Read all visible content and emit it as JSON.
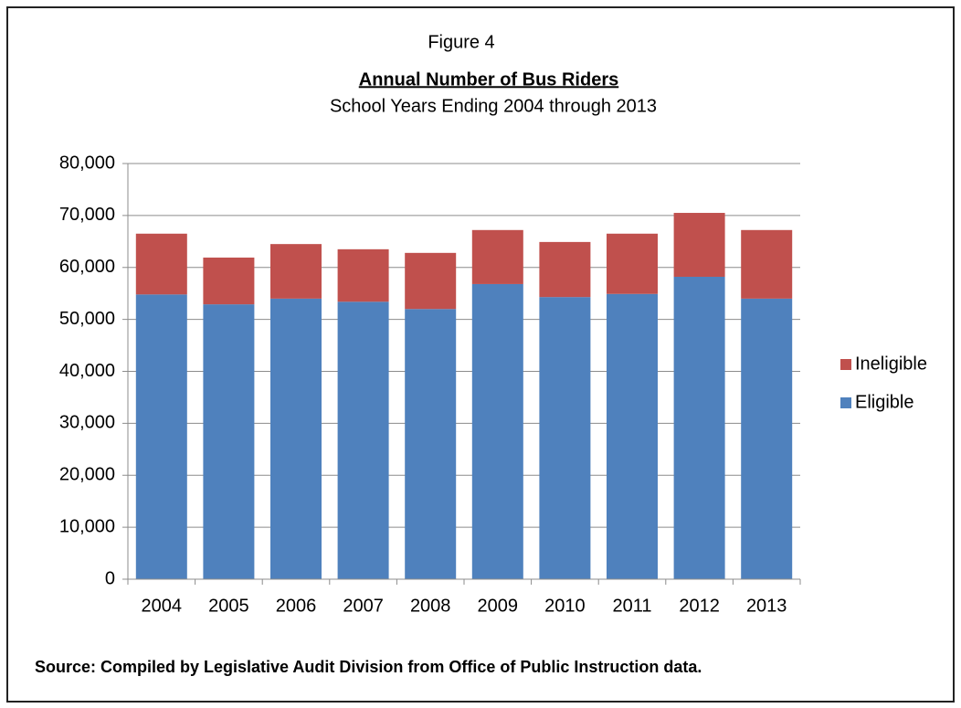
{
  "chart_data": {
    "type": "stacked_bar",
    "figure_label": "Figure 4",
    "title": "Annual Number of Bus Riders",
    "subtitle": "School Years Ending 2004 through 2013",
    "source": "Source:  Compiled by Legislative Audit Division from Office of Public Instruction data.",
    "categories": [
      "2004",
      "2005",
      "2006",
      "2007",
      "2008",
      "2009",
      "2010",
      "2011",
      "2012",
      "2013"
    ],
    "series": [
      {
        "name": "Eligible",
        "color": "#4f81bd",
        "values": [
          54800,
          52900,
          54000,
          53400,
          52000,
          56800,
          54300,
          54900,
          58200,
          54000
        ]
      },
      {
        "name": "Ineligible",
        "color": "#c0504d",
        "values": [
          11700,
          9000,
          10500,
          10100,
          10800,
          10400,
          10600,
          11600,
          12300,
          13200
        ]
      }
    ],
    "ylim": [
      0,
      80000
    ],
    "yticks": [
      0,
      {
        "value": 10000,
        "label": "10,000"
      },
      {
        "value": 20000,
        "label": "20,000"
      },
      {
        "value": 30000,
        "label": "30,000"
      },
      {
        "value": 40000,
        "label": "40,000"
      },
      {
        "value": 50000,
        "label": "50,000"
      },
      {
        "value": 60000,
        "label": "60,000"
      },
      {
        "value": 70000,
        "label": "70,000"
      },
      {
        "value": 80000,
        "label": "80,000"
      }
    ],
    "grid": true,
    "legend": "right"
  }
}
